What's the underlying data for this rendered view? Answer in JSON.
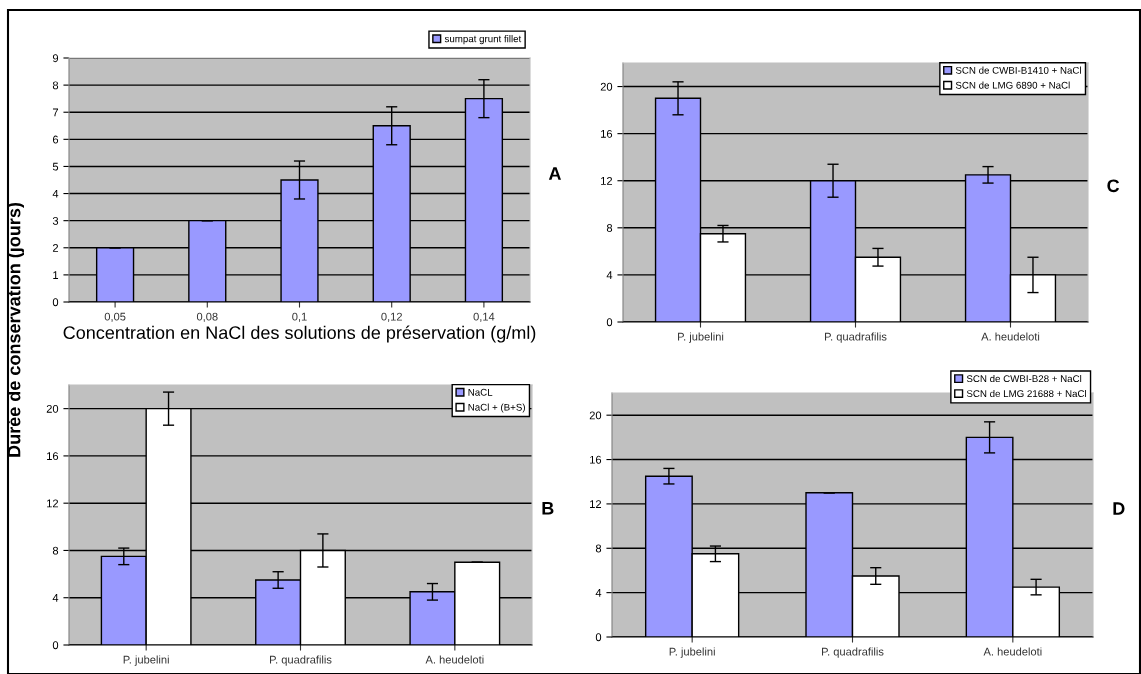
{
  "chart_data": [
    {
      "type": "bar",
      "categories": [
        "0,05",
        "0,08",
        "0,1",
        "0,12",
        "0,14"
      ],
      "xlabel": "Concentration en NaCl des solutions de préservation (g/ml)",
      "ylabel": "Durée de conservation (jours)",
      "ylim": [
        0,
        9
      ],
      "yticks": [
        0,
        1,
        2,
        3,
        4,
        5,
        6,
        7,
        8,
        9
      ],
      "grid": "y",
      "legend": "top right",
      "annotations": [
        "A"
      ],
      "series": [
        {
          "name": "sumpat grunt fillet",
          "color": "#9999ff",
          "values": [
            2,
            3,
            4.5,
            6.5,
            7.5
          ],
          "errors": [
            0,
            0,
            0.7,
            0.7,
            0.7
          ]
        }
      ]
    },
    {
      "type": "bar",
      "categories": [
        "P. jubelini",
        "P. quadrafilis",
        "A. heudeloti"
      ],
      "ylim": [
        0,
        22
      ],
      "yticks": [
        0,
        4,
        8,
        12,
        16,
        20
      ],
      "grid": "y",
      "legend": "top right",
      "annotations": [
        "C"
      ],
      "series": [
        {
          "name": "SCN de CWBI-B1410 + NaCl",
          "color": "#9999ff",
          "values": [
            19,
            12,
            12.5
          ],
          "errors": [
            1.4,
            1.4,
            0.7
          ]
        },
        {
          "name": "SCN de LMG 6890 + NaCl",
          "color": "#ffffff",
          "values": [
            7.5,
            5.5,
            4
          ],
          "errors": [
            0.7,
            0.75,
            1.5
          ]
        }
      ]
    },
    {
      "type": "bar",
      "categories": [
        "P. jubelini",
        "P. quadrafilis",
        "A. heudeloti"
      ],
      "ylim": [
        0,
        22
      ],
      "yticks": [
        0,
        4,
        8,
        12,
        16,
        20
      ],
      "grid": "y",
      "legend": "top right",
      "annotations": [
        "B"
      ],
      "series": [
        {
          "name": "NaCL",
          "color": "#9999ff",
          "values": [
            7.5,
            5.5,
            4.5
          ],
          "errors": [
            0.7,
            0.7,
            0.7
          ]
        },
        {
          "name": "NaCl + (B+S)",
          "color": "#ffffff",
          "values": [
            20,
            8,
            7
          ],
          "errors": [
            1.4,
            1.4,
            0
          ]
        }
      ]
    },
    {
      "type": "bar",
      "categories": [
        "P. jubelini",
        "P. quadrafilis",
        "A. heudeloti"
      ],
      "ylim": [
        0,
        22
      ],
      "yticks": [
        0,
        4,
        8,
        12,
        16,
        20
      ],
      "grid": "y",
      "legend": "top right",
      "annotations": [
        "D"
      ],
      "series": [
        {
          "name": "SCN de CWBI-B28 + NaCl",
          "color": "#9999ff",
          "values": [
            14.5,
            13,
            18
          ],
          "errors": [
            0.7,
            0,
            1.4
          ]
        },
        {
          "name": "SCN de LMG 21688 + NaCl",
          "color": "#ffffff",
          "values": [
            7.5,
            5.5,
            4.5
          ],
          "errors": [
            0.7,
            0.75,
            0.7
          ]
        }
      ]
    }
  ]
}
